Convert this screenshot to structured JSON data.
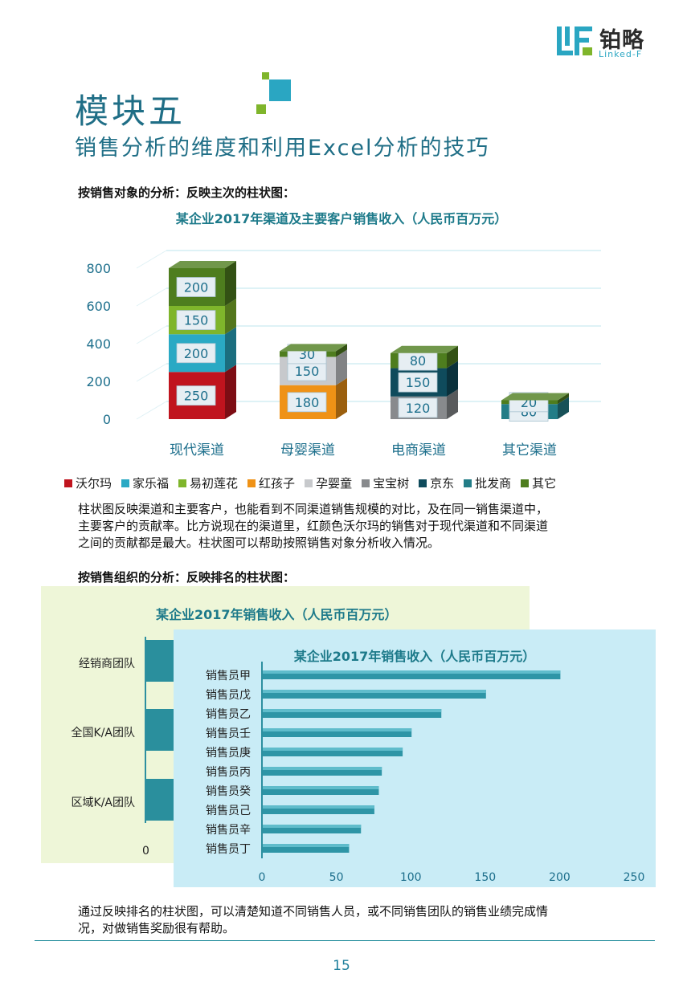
{
  "logo": {
    "cn": "铂略",
    "en": "Linked-F",
    "mark_icon": "linkedf-logo-icon"
  },
  "module": {
    "title": "模块五",
    "subtitle": "销售分析的维度和利用Excel分析的技巧"
  },
  "section1": {
    "heading": "按销售对象的分析：反映主次的柱状图：",
    "paragraph_lines": [
      "柱状图反映渠道和主要客户，也能看到不同渠道销售规模的对比，及在同一销售渠道中，",
      "主要客户的贡献率。比方说现在的渠道里，红颜色沃尔玛的销售对于现代渠道和不同渠道",
      "之间的贡献都是最大。柱状图可以帮助按照销售对象分析收入情况。"
    ]
  },
  "section2": {
    "heading": "按销售组织的分析：反映排名的柱状图：",
    "paragraph_lines": [
      "通过反映排名的柱状图，可以清楚知道不同销售人员，或不同销售团队的销售业绩完成情",
      "况，对做销售奖励很有帮助。"
    ]
  },
  "page_number": "15",
  "colors": {
    "teal_title": "#1f6e86",
    "沃尔玛": "#c0141e",
    "家乐福": "#2aa9c4",
    "易初莲花": "#7fb52b",
    "红孩子": "#ef9216",
    "孕婴童": "#c7c9cc",
    "宝宝树": "#888a8d",
    "京东": "#0f4b5c",
    "批发商": "#237d87",
    "其它": "#4e7d1e"
  },
  "chart_data": [
    {
      "type": "bar",
      "stacked": true,
      "three_d": true,
      "title": "某企业2017年渠道及主要客户销售收入（人民币百万元）",
      "categories": [
        "现代渠道",
        "母婴渠道",
        "电商渠道",
        "其它渠道"
      ],
      "yticks": [
        "0",
        "200",
        "400",
        "600",
        "800"
      ],
      "ylim": [
        0,
        800
      ],
      "legend_position": "bottom",
      "series": [
        {
          "name": "沃尔玛",
          "values": [
            250,
            null,
            null,
            null
          ]
        },
        {
          "name": "家乐福",
          "values": [
            200,
            null,
            null,
            null
          ]
        },
        {
          "name": "易初莲花",
          "values": [
            150,
            null,
            null,
            null
          ]
        },
        {
          "name": "红孩子",
          "values": [
            null,
            180,
            null,
            null
          ]
        },
        {
          "name": "孕婴童",
          "values": [
            null,
            150,
            null,
            null
          ]
        },
        {
          "name": "宝宝树",
          "values": [
            null,
            null,
            120,
            null
          ]
        },
        {
          "name": "京东",
          "values": [
            null,
            null,
            150,
            null
          ]
        },
        {
          "name": "批发商",
          "values": [
            null,
            null,
            null,
            80
          ]
        },
        {
          "name": "其它",
          "values": [
            200,
            30,
            80,
            20
          ]
        }
      ]
    },
    {
      "type": "bar",
      "orientation": "horizontal",
      "title": "某企业2017年销售收入（人民币百万元）",
      "categories": [
        "经销商团队",
        "全国K/A团队",
        "区域K/A团队"
      ],
      "xticks": [
        "0"
      ],
      "values": null,
      "partially_hidden": true
    },
    {
      "type": "bar",
      "orientation": "horizontal",
      "title": "某企业2017年销售收入（人民币百万元）",
      "categories": [
        "销售员甲",
        "销售员戊",
        "销售员乙",
        "销售员壬",
        "销售员庚",
        "销售员丙",
        "销售员癸",
        "销售员己",
        "销售员辛",
        "销售员丁"
      ],
      "values": [
        200,
        150,
        120,
        100,
        94,
        80,
        78,
        75,
        66,
        58
      ],
      "xticks": [
        "0",
        "50",
        "100",
        "150",
        "200",
        "250"
      ],
      "xlim": [
        0,
        250
      ],
      "grid": false
    }
  ]
}
